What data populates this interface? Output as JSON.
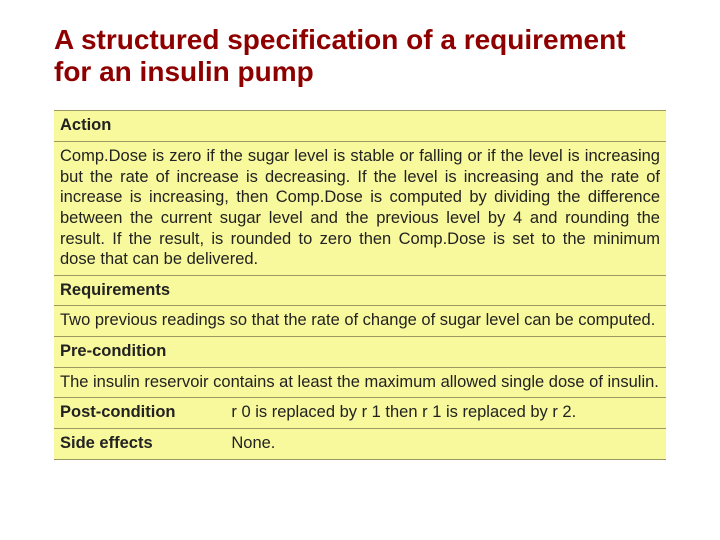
{
  "title": "A structured specification of a requirement for an insulin pump",
  "colors": {
    "title": "#8e0000",
    "row_bg": "#f8f89c",
    "row_border": "#9a9a60",
    "text": "#222222",
    "page_bg": "#ffffff"
  },
  "typography": {
    "title_size_pt": 21,
    "title_weight": "bold",
    "body_size_pt": 12,
    "font_family": "Arial"
  },
  "spec": {
    "action": {
      "label": "Action",
      "text": "Comp.Dose is zero if the sugar level is stable or falling or if the level is increasing but the rate of increase is decreasing. If the level is increasing and the rate of increase is increasing, then Comp.Dose is computed by dividing the difference between the current sugar level and the previous level by 4 and rounding the result. If the result, is rounded to zero then Comp.Dose is set to the minimum dose that can be delivered."
    },
    "requirements": {
      "label": "Requirements",
      "text": "Two previous readings so that the rate of change of sugar level can be computed."
    },
    "precondition": {
      "label": "Pre-condition",
      "text": "The insulin reservoir contains at least the maximum allowed single dose of insulin."
    },
    "postcondition": {
      "label": "Post-condition",
      "text": "r 0 is replaced by r 1 then r 1 is replaced by r 2."
    },
    "side_effects": {
      "label": "Side effects",
      "text": "None."
    }
  }
}
